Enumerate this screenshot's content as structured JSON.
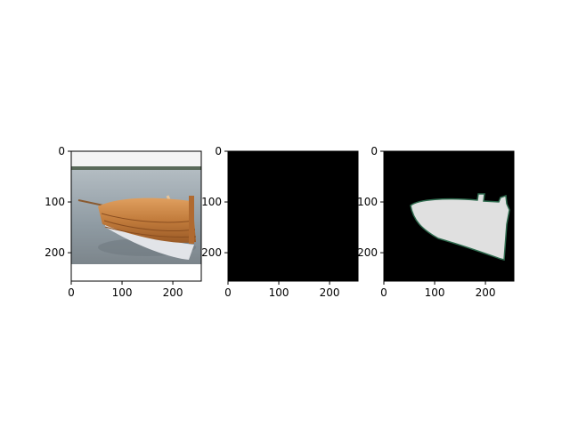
{
  "chart_data": [
    {
      "type": "image",
      "image_content": "photo of a varnished wooden rowboat with oars on a lake shore",
      "x_ticks": [
        0,
        100,
        200
      ],
      "y_ticks": [
        0,
        100,
        200
      ],
      "xlim": [
        0,
        256
      ],
      "ylim": [
        256,
        0
      ],
      "colors": {
        "water": "#8e9aa2",
        "sky": "#f4f4f4",
        "hull_wood": "#c27c3c",
        "hull_white": "#e2e4e8"
      }
    },
    {
      "type": "image",
      "image_content": "all-black mask",
      "x_ticks": [
        0,
        100,
        200
      ],
      "y_ticks": [
        0,
        100,
        200
      ],
      "xlim": [
        0,
        256
      ],
      "ylim": [
        256,
        0
      ],
      "colors": {
        "background": "#000000"
      }
    },
    {
      "type": "image",
      "image_content": "black background with light-gray boat segmentation mask and dark green outline",
      "x_ticks": [
        0,
        100,
        200
      ],
      "y_ticks": [
        0,
        100,
        200
      ],
      "xlim": [
        0,
        256
      ],
      "ylim": [
        256,
        0
      ],
      "colors": {
        "background": "#000000",
        "mask": "#e0e0e0",
        "outline": "#2e6b4e"
      }
    }
  ]
}
